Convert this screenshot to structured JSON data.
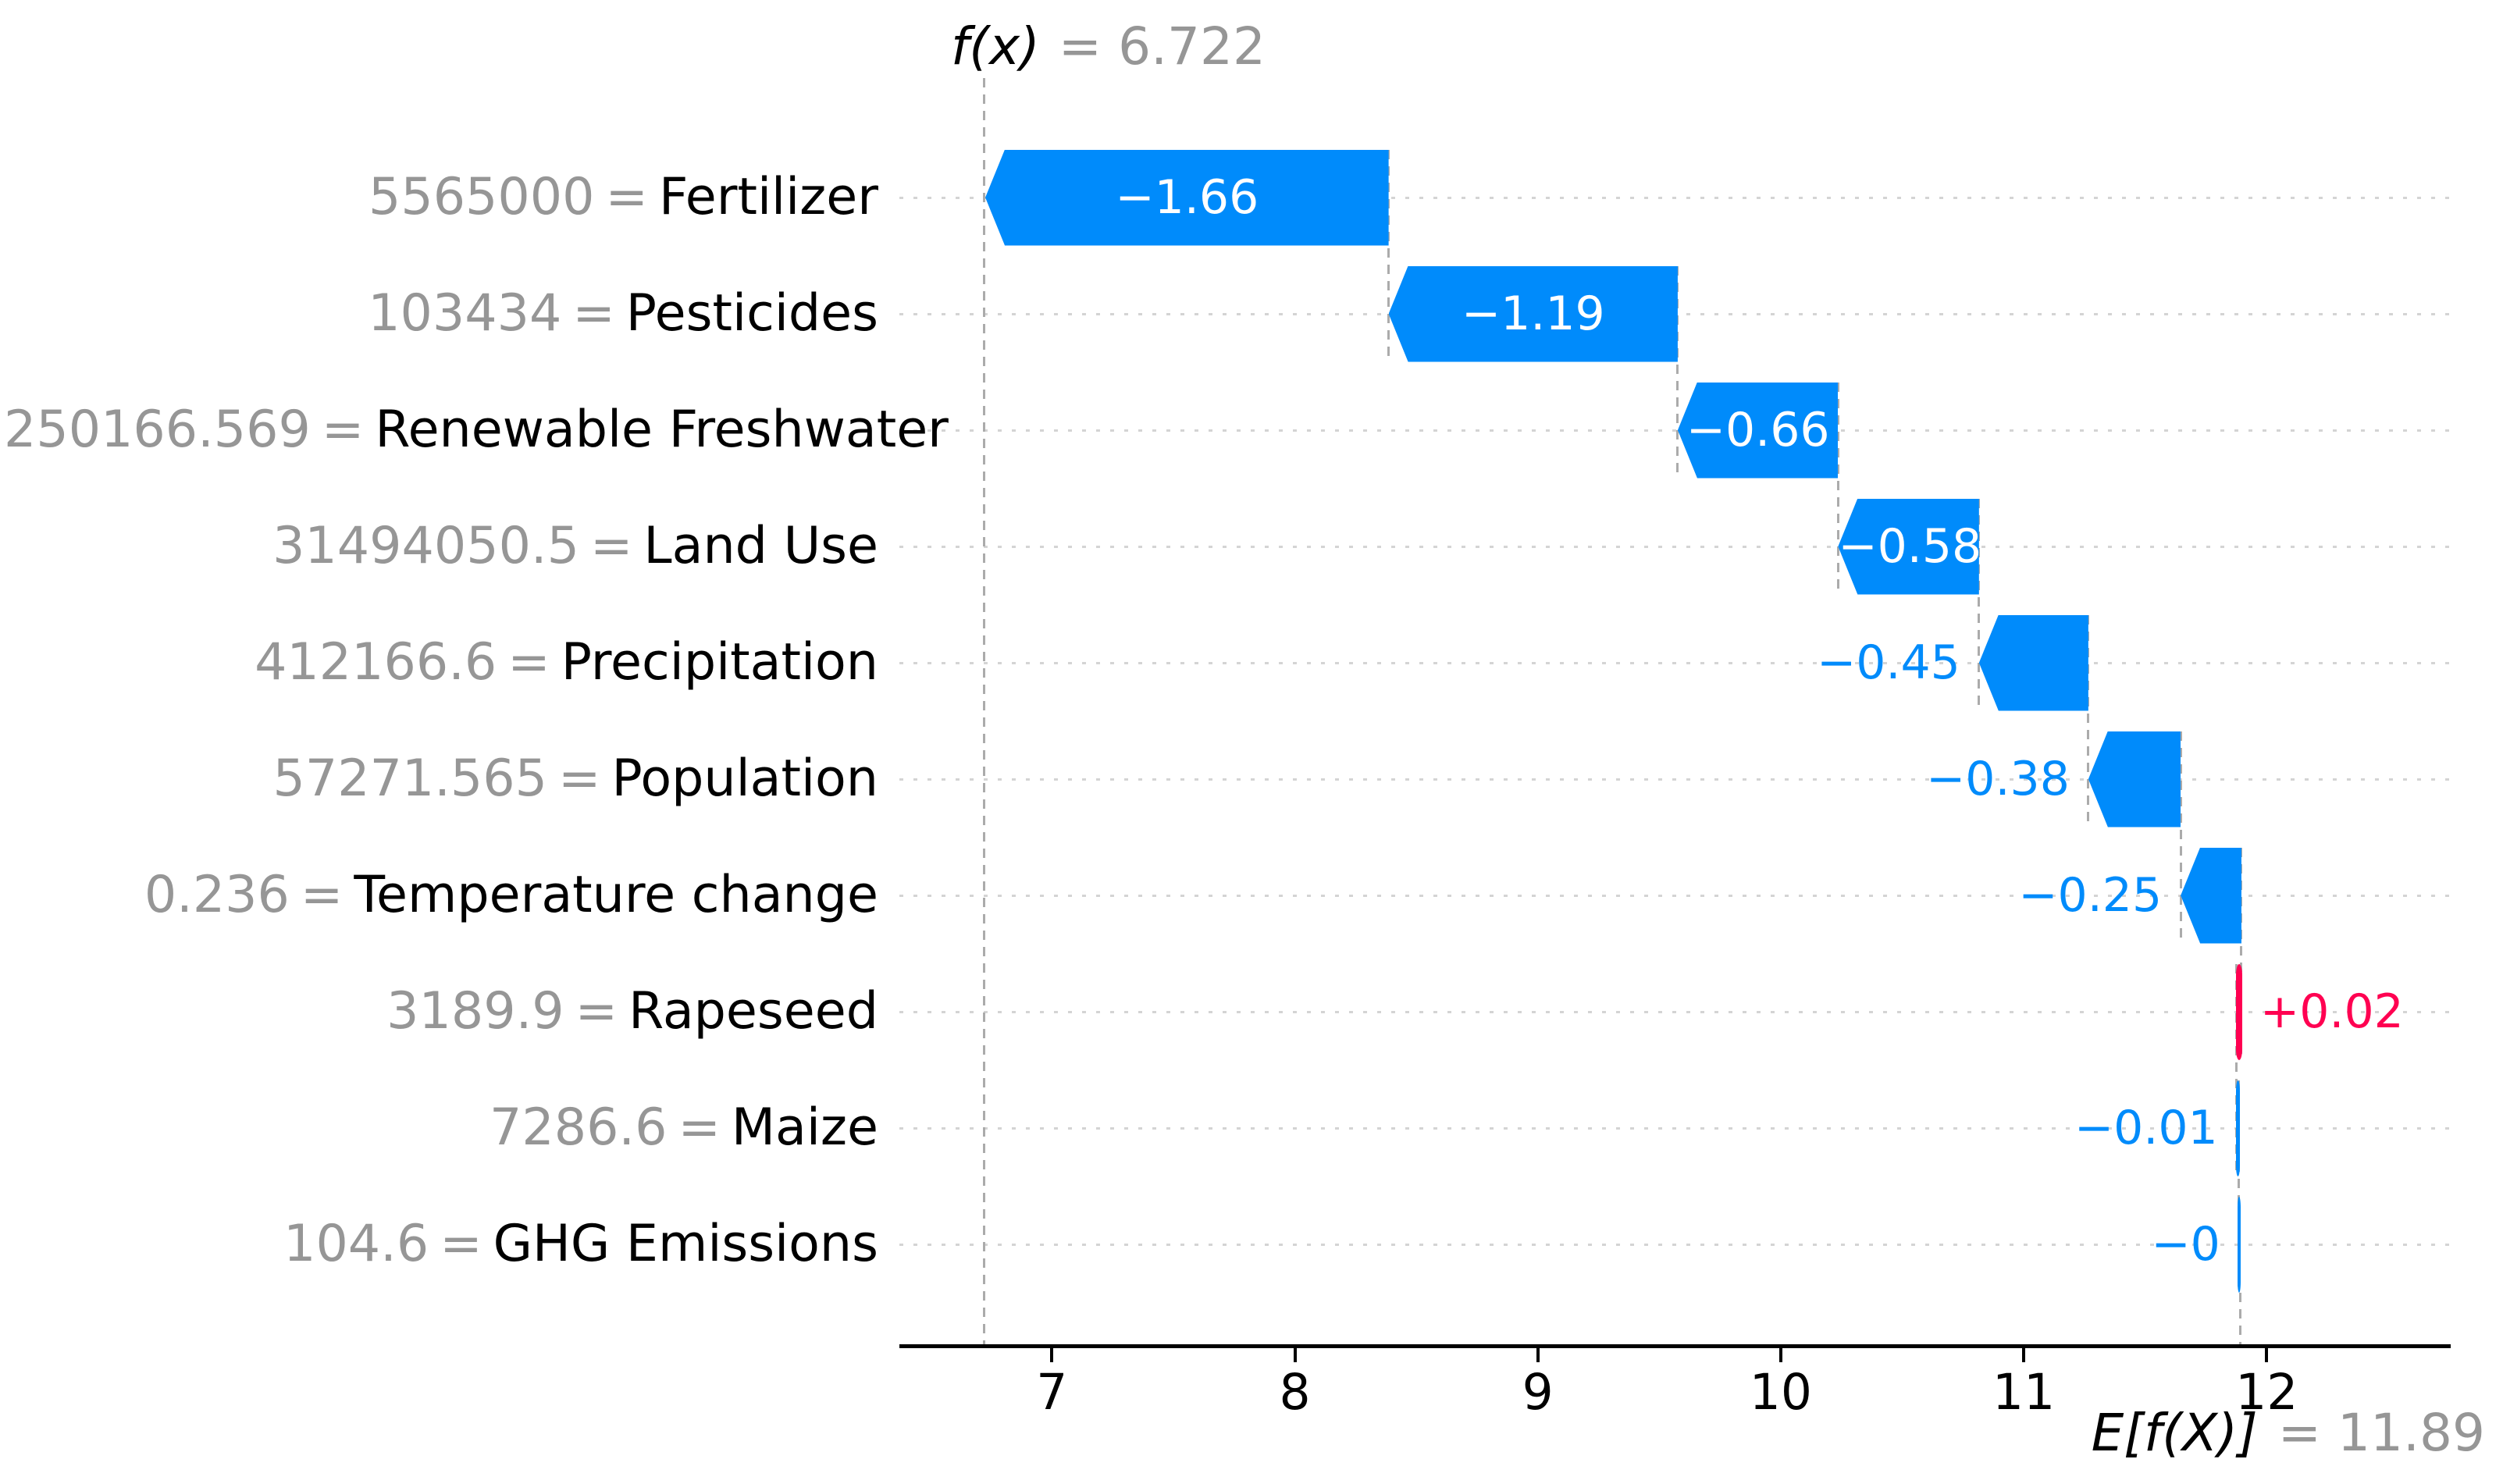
{
  "title": {
    "fx_label": "f(x)",
    "fx_value": "= 6.722"
  },
  "footer": {
    "efx_label": "E[f(X)]",
    "efx_value": "= 11.89"
  },
  "equals": "=",
  "colors": {
    "negative_blue": "#008bfb",
    "positive_red": "#ff0051",
    "value_gray": "#969696",
    "label_black": "#000000",
    "grid_gray": "#d4d4d4",
    "dash_gray": "#ababab",
    "inbar_white": "#ffffff"
  },
  "chart_data": {
    "type": "waterfall",
    "title": "f(x) = 6.722",
    "base_label": "E[f(X)] = 11.89",
    "base_value": 11.89,
    "fx_value": 6.722,
    "x_ticks": [
      7,
      8,
      9,
      10,
      11,
      12
    ],
    "xlim": [
      6.37,
      12.76
    ],
    "grid": "dotted horizontal line per feature row",
    "legend": "none",
    "features": [
      {
        "name": "Fertilizer",
        "value": "5565000",
        "shap": -1.66,
        "shap_label": "−1.66"
      },
      {
        "name": "Pesticides",
        "value": "103434",
        "shap": -1.19,
        "shap_label": "−1.19"
      },
      {
        "name": "Renewable Freshwater",
        "value": "250166.569",
        "shap": -0.66,
        "shap_label": "−0.66"
      },
      {
        "name": "Land Use",
        "value": "31494050.5",
        "shap": -0.58,
        "shap_label": "−0.58"
      },
      {
        "name": "Precipitation",
        "value": "412166.6",
        "shap": -0.45,
        "shap_label": "−0.45"
      },
      {
        "name": "Population",
        "value": "57271.565",
        "shap": -0.38,
        "shap_label": "−0.38"
      },
      {
        "name": "Temperature change",
        "value": "0.236",
        "shap": -0.25,
        "shap_label": "−0.25"
      },
      {
        "name": "Rapeseed",
        "value": "3189.9",
        "shap": 0.02,
        "shap_label": "+0.02"
      },
      {
        "name": "Maize",
        "value": "7286.6",
        "shap": -0.01,
        "shap_label": "−0.01"
      },
      {
        "name": "GHG Emissions",
        "value": "104.6",
        "shap": -0.004,
        "shap_label": "−0"
      }
    ]
  }
}
